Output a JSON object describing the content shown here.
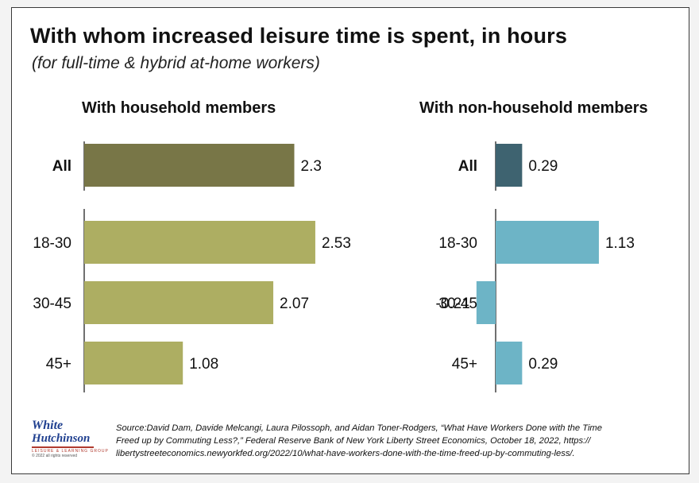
{
  "title": "With whom increased leisure time is spent, in hours",
  "subtitle": "(for full-time & hybrid at-home workers)",
  "source_lines": [
    "Source:David Dam, Davide Melcangi, Laura Pilossoph, and Aidan Toner-Rodgers, “What Have Workers Done with the Time",
    "Freed up by Commuting Less?,” Federal Reserve Bank of New York Liberty Street Economics, October 18, 2022, https://",
    "libertystreeteconomics.newyorkfed.org/2022/10/what-have-workers-done-with-the-time-freed-up-by-commuting-less/."
  ],
  "logo": {
    "line1": "White",
    "line2": "Hutchinson",
    "line3": "LEISURE & LEARNING GROUP",
    "line4": "© 2022 all rights reserved"
  },
  "colors": {
    "household_all": "#787647",
    "household_age": "#adae62",
    "nonhousehold_all": "#3e6370",
    "nonhousehold_age": "#6db4c6"
  },
  "chart_data": [
    {
      "type": "bar",
      "orientation": "horizontal",
      "title": "With household members",
      "categories": [
        "All",
        "18-30",
        "30-45",
        "45+"
      ],
      "values": [
        2.3,
        2.53,
        2.07,
        1.08
      ],
      "labels": [
        "2.3",
        "2.53",
        "2.07",
        "1.08"
      ],
      "unit": "hours"
    },
    {
      "type": "bar",
      "orientation": "horizontal",
      "title": "With non-household members",
      "categories": [
        "All",
        "18-30",
        "30-45",
        "45+"
      ],
      "values": [
        0.29,
        1.13,
        -0.21,
        0.29
      ],
      "labels": [
        "0.29",
        "1.13",
        "-0.21",
        "0.29"
      ],
      "unit": "hours"
    }
  ]
}
